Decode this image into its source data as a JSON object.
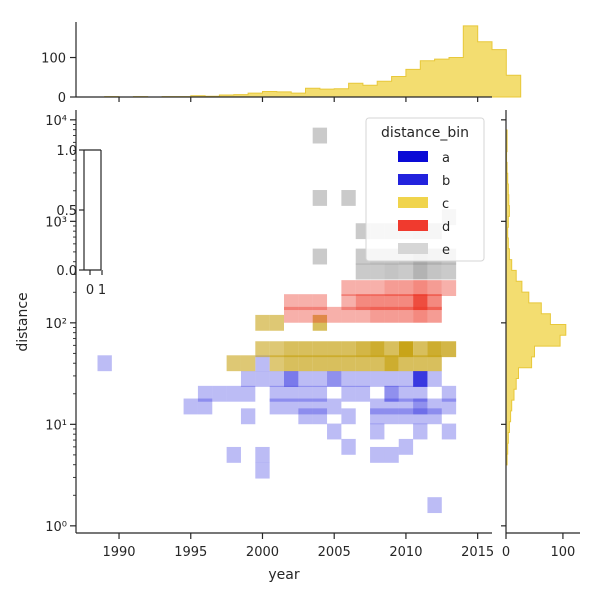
{
  "chart_data": {
    "type": "heatmap",
    "title": "",
    "xlabel": "year",
    "ylabel": "distance",
    "x_range": [
      1987,
      2016
    ],
    "y_range": [
      0.85,
      12500
    ],
    "y_scale": "log",
    "x_ticks": [
      1990,
      1995,
      2000,
      2005,
      2010,
      2015
    ],
    "y_ticks": [
      {
        "value": 1,
        "label": "10⁰"
      },
      {
        "value": 10,
        "label": "10¹"
      },
      {
        "value": 100,
        "label": "10²"
      },
      {
        "value": 1000,
        "label": "10³"
      },
      {
        "value": 10000,
        "label": "10⁴"
      }
    ],
    "x_bin_years": [
      1988.5,
      1989.5,
      1990.5,
      1991.5,
      1992.5,
      1993.5,
      1994.5,
      1995.5,
      1996.5,
      1997.5,
      1998.5,
      1999.5,
      2000.5,
      2001.5,
      2002.5,
      2003.5,
      2004.5,
      2005.5,
      2006.5,
      2007.5,
      2008.5,
      2009.5,
      2010.5,
      2011.5,
      2012.5,
      2013.5
    ],
    "legend": {
      "title": "distance_bin",
      "placement": "top-right",
      "entries": [
        {
          "label": "a",
          "color": "#0a0ad6"
        },
        {
          "label": "b",
          "color": "#2222dd"
        },
        {
          "label": "c",
          "color": "#f0d44c"
        },
        {
          "label": "d",
          "color": "#f03a2e"
        },
        {
          "label": "e",
          "color": "#d6d6d6"
        }
      ]
    },
    "hue_series": [
      {
        "name": "b",
        "color": "#2222dd",
        "cells": [
          {
            "x": 1989,
            "y": 40,
            "n": 0.3
          },
          {
            "x": 1995,
            "y": 15,
            "n": 0.3
          },
          {
            "x": 1996,
            "y": 15,
            "n": 0.3
          },
          {
            "x": 1996,
            "y": 20,
            "n": 0.3
          },
          {
            "x": 1997,
            "y": 20,
            "n": 0.3
          },
          {
            "x": 1998,
            "y": 20,
            "n": 0.3
          },
          {
            "x": 1998,
            "y": 5,
            "n": 0.3
          },
          {
            "x": 1999,
            "y": 12,
            "n": 0.3
          },
          {
            "x": 1999,
            "y": 20,
            "n": 0.3
          },
          {
            "x": 1999,
            "y": 28,
            "n": 0.3
          },
          {
            "x": 2000,
            "y": 40,
            "n": 0.3
          },
          {
            "x": 2000,
            "y": 28,
            "n": 0.3
          },
          {
            "x": 2000,
            "y": 5,
            "n": 0.3
          },
          {
            "x": 2000,
            "y": 3.5,
            "n": 0.3
          },
          {
            "x": 2001,
            "y": 28,
            "n": 0.3
          },
          {
            "x": 2001,
            "y": 20,
            "n": 0.3
          },
          {
            "x": 2001,
            "y": 15,
            "n": 0.3
          },
          {
            "x": 2002,
            "y": 28,
            "n": 0.6
          },
          {
            "x": 2002,
            "y": 20,
            "n": 0.3
          },
          {
            "x": 2002,
            "y": 15,
            "n": 0.3
          },
          {
            "x": 2003,
            "y": 28,
            "n": 0.3
          },
          {
            "x": 2003,
            "y": 20,
            "n": 0.3
          },
          {
            "x": 2003,
            "y": 15,
            "n": 0.3
          },
          {
            "x": 2003,
            "y": 12,
            "n": 0.3
          },
          {
            "x": 2004,
            "y": 28,
            "n": 0.3
          },
          {
            "x": 2004,
            "y": 20,
            "n": 0.3
          },
          {
            "x": 2004,
            "y": 15,
            "n": 0.3
          },
          {
            "x": 2004,
            "y": 12,
            "n": 0.3
          },
          {
            "x": 2005,
            "y": 28,
            "n": 0.5
          },
          {
            "x": 2005,
            "y": 15,
            "n": 0.3
          },
          {
            "x": 2005,
            "y": 8.5,
            "n": 0.3
          },
          {
            "x": 2006,
            "y": 28,
            "n": 0.3
          },
          {
            "x": 2006,
            "y": 20,
            "n": 0.3
          },
          {
            "x": 2006,
            "y": 12,
            "n": 0.3
          },
          {
            "x": 2006,
            "y": 6,
            "n": 0.3
          },
          {
            "x": 2007,
            "y": 28,
            "n": 0.3
          },
          {
            "x": 2007,
            "y": 20,
            "n": 0.3
          },
          {
            "x": 2008,
            "y": 28,
            "n": 0.3
          },
          {
            "x": 2008,
            "y": 15,
            "n": 0.3
          },
          {
            "x": 2008,
            "y": 12,
            "n": 0.3
          },
          {
            "x": 2008,
            "y": 8.5,
            "n": 0.3
          },
          {
            "x": 2008,
            "y": 5,
            "n": 0.3
          },
          {
            "x": 2009,
            "y": 28,
            "n": 0.3
          },
          {
            "x": 2009,
            "y": 20,
            "n": 0.5
          },
          {
            "x": 2009,
            "y": 15,
            "n": 0.3
          },
          {
            "x": 2009,
            "y": 12,
            "n": 0.3
          },
          {
            "x": 2009,
            "y": 5,
            "n": 0.3
          },
          {
            "x": 2010,
            "y": 28,
            "n": 0.3
          },
          {
            "x": 2010,
            "y": 20,
            "n": 0.3
          },
          {
            "x": 2010,
            "y": 15,
            "n": 0.3
          },
          {
            "x": 2010,
            "y": 12,
            "n": 0.3
          },
          {
            "x": 2010,
            "y": 6,
            "n": 0.3
          },
          {
            "x": 2011,
            "y": 28,
            "n": 0.9
          },
          {
            "x": 2011,
            "y": 20,
            "n": 0.3
          },
          {
            "x": 2011,
            "y": 15,
            "n": 0.5
          },
          {
            "x": 2011,
            "y": 12,
            "n": 0.3
          },
          {
            "x": 2011,
            "y": 8.5,
            "n": 0.3
          },
          {
            "x": 2012,
            "y": 28,
            "n": 0.3
          },
          {
            "x": 2012,
            "y": 15,
            "n": 0.3
          },
          {
            "x": 2012,
            "y": 12,
            "n": 0.3
          },
          {
            "x": 2012,
            "y": 1.6,
            "n": 0.3
          },
          {
            "x": 2013,
            "y": 20,
            "n": 0.3
          },
          {
            "x": 2013,
            "y": 15,
            "n": 0.3
          },
          {
            "x": 2013,
            "y": 8.5,
            "n": 0.3
          }
        ]
      },
      {
        "name": "c",
        "color": "#c8a418",
        "cells": [
          {
            "x": 1998,
            "y": 40,
            "n": 0.6
          },
          {
            "x": 1999,
            "y": 40,
            "n": 0.6
          },
          {
            "x": 2000,
            "y": 100,
            "n": 0.6
          },
          {
            "x": 2000,
            "y": 55,
            "n": 0.6
          },
          {
            "x": 2001,
            "y": 100,
            "n": 0.6
          },
          {
            "x": 2001,
            "y": 55,
            "n": 0.6
          },
          {
            "x": 2001,
            "y": 40,
            "n": 0.6
          },
          {
            "x": 2002,
            "y": 55,
            "n": 0.7
          },
          {
            "x": 2002,
            "y": 40,
            "n": 0.7
          },
          {
            "x": 2003,
            "y": 55,
            "n": 0.7
          },
          {
            "x": 2003,
            "y": 40,
            "n": 0.7
          },
          {
            "x": 2004,
            "y": 100,
            "n": 0.7
          },
          {
            "x": 2004,
            "y": 55,
            "n": 0.7
          },
          {
            "x": 2004,
            "y": 40,
            "n": 0.7
          },
          {
            "x": 2005,
            "y": 55,
            "n": 0.7
          },
          {
            "x": 2005,
            "y": 40,
            "n": 0.7
          },
          {
            "x": 2006,
            "y": 55,
            "n": 0.7
          },
          {
            "x": 2006,
            "y": 40,
            "n": 0.7
          },
          {
            "x": 2007,
            "y": 55,
            "n": 0.8
          },
          {
            "x": 2007,
            "y": 40,
            "n": 0.7
          },
          {
            "x": 2008,
            "y": 55,
            "n": 0.9
          },
          {
            "x": 2008,
            "y": 40,
            "n": 0.7
          },
          {
            "x": 2009,
            "y": 55,
            "n": 0.7
          },
          {
            "x": 2009,
            "y": 40,
            "n": 0.9
          },
          {
            "x": 2010,
            "y": 55,
            "n": 1.0
          },
          {
            "x": 2010,
            "y": 40,
            "n": 0.7
          },
          {
            "x": 2011,
            "y": 55,
            "n": 0.7
          },
          {
            "x": 2011,
            "y": 40,
            "n": 0.7
          },
          {
            "x": 2012,
            "y": 55,
            "n": 0.9
          },
          {
            "x": 2012,
            "y": 40,
            "n": 0.7
          },
          {
            "x": 2013,
            "y": 55,
            "n": 0.8
          }
        ]
      },
      {
        "name": "d",
        "color": "#ec3a2a",
        "cells": [
          {
            "x": 2002,
            "y": 160,
            "n": 0.4
          },
          {
            "x": 2002,
            "y": 120,
            "n": 0.4
          },
          {
            "x": 2003,
            "y": 160,
            "n": 0.4
          },
          {
            "x": 2003,
            "y": 120,
            "n": 0.4
          },
          {
            "x": 2004,
            "y": 160,
            "n": 0.4
          },
          {
            "x": 2004,
            "y": 120,
            "n": 0.4
          },
          {
            "x": 2005,
            "y": 120,
            "n": 0.4
          },
          {
            "x": 2006,
            "y": 220,
            "n": 0.4
          },
          {
            "x": 2006,
            "y": 160,
            "n": 0.4
          },
          {
            "x": 2006,
            "y": 120,
            "n": 0.4
          },
          {
            "x": 2007,
            "y": 220,
            "n": 0.4
          },
          {
            "x": 2007,
            "y": 160,
            "n": 0.6
          },
          {
            "x": 2007,
            "y": 120,
            "n": 0.4
          },
          {
            "x": 2008,
            "y": 220,
            "n": 0.4
          },
          {
            "x": 2008,
            "y": 160,
            "n": 0.6
          },
          {
            "x": 2008,
            "y": 120,
            "n": 0.5
          },
          {
            "x": 2009,
            "y": 220,
            "n": 0.5
          },
          {
            "x": 2009,
            "y": 160,
            "n": 0.6
          },
          {
            "x": 2009,
            "y": 120,
            "n": 0.5
          },
          {
            "x": 2010,
            "y": 220,
            "n": 0.5
          },
          {
            "x": 2010,
            "y": 160,
            "n": 0.6
          },
          {
            "x": 2010,
            "y": 120,
            "n": 0.5
          },
          {
            "x": 2011,
            "y": 220,
            "n": 0.6
          },
          {
            "x": 2011,
            "y": 160,
            "n": 0.9
          },
          {
            "x": 2011,
            "y": 120,
            "n": 0.6
          },
          {
            "x": 2012,
            "y": 220,
            "n": 0.5
          },
          {
            "x": 2012,
            "y": 160,
            "n": 0.6
          },
          {
            "x": 2012,
            "y": 120,
            "n": 0.5
          },
          {
            "x": 2013,
            "y": 220,
            "n": 0.4
          }
        ]
      },
      {
        "name": "e",
        "color": "#8a8a8a",
        "cells": [
          {
            "x": 2004,
            "y": 7000,
            "n": 0.45
          },
          {
            "x": 2004,
            "y": 1700,
            "n": 0.45
          },
          {
            "x": 2004,
            "y": 450,
            "n": 0.45
          },
          {
            "x": 2006,
            "y": 1700,
            "n": 0.45
          },
          {
            "x": 2007,
            "y": 800,
            "n": 0.45
          },
          {
            "x": 2007,
            "y": 450,
            "n": 0.45
          },
          {
            "x": 2007,
            "y": 320,
            "n": 0.45
          },
          {
            "x": 2008,
            "y": 800,
            "n": 0.45
          },
          {
            "x": 2008,
            "y": 450,
            "n": 0.5
          },
          {
            "x": 2008,
            "y": 320,
            "n": 0.45
          },
          {
            "x": 2009,
            "y": 800,
            "n": 0.45
          },
          {
            "x": 2009,
            "y": 450,
            "n": 0.5
          },
          {
            "x": 2009,
            "y": 320,
            "n": 0.5
          },
          {
            "x": 2010,
            "y": 800,
            "n": 0.45
          },
          {
            "x": 2010,
            "y": 450,
            "n": 0.55
          },
          {
            "x": 2010,
            "y": 320,
            "n": 0.45
          },
          {
            "x": 2011,
            "y": 800,
            "n": 0.55
          },
          {
            "x": 2011,
            "y": 450,
            "n": 0.7
          },
          {
            "x": 2011,
            "y": 320,
            "n": 0.65
          },
          {
            "x": 2012,
            "y": 800,
            "n": 0.5
          },
          {
            "x": 2012,
            "y": 450,
            "n": 0.6
          },
          {
            "x": 2012,
            "y": 320,
            "n": 0.5
          },
          {
            "x": 2013,
            "y": 1100,
            "n": 0.45
          },
          {
            "x": 2013,
            "y": 450,
            "n": 0.5
          },
          {
            "x": 2013,
            "y": 320,
            "n": 0.45
          }
        ]
      }
    ],
    "marginal_x": {
      "color": "#f0d44c",
      "y_ticks": [
        0,
        100
      ],
      "y_max": 190,
      "counts": [
        0,
        1,
        0,
        1,
        0,
        1,
        1,
        3,
        2,
        5,
        6,
        10,
        14,
        13,
        10,
        22,
        20,
        21,
        35,
        30,
        40,
        52,
        70,
        92,
        96,
        100,
        180,
        140,
        120,
        55
      ]
    },
    "marginal_y": {
      "color": "#f0d44c",
      "x_ticks": [
        0,
        100
      ],
      "x_max": 130,
      "counts": [
        2,
        3,
        4,
        6,
        8,
        10,
        14,
        18,
        22,
        45,
        50,
        95,
        105,
        78,
        62,
        40,
        28,
        18,
        10,
        6,
        4,
        3,
        4,
        6,
        5,
        4,
        3,
        2,
        1,
        2,
        2
      ]
    },
    "colorbar": {
      "ticks": [
        {
          "value": 0,
          "label": "0.0"
        },
        {
          "value": 0.5,
          "label": "0.5"
        },
        {
          "value": 1,
          "label": "1.0"
        }
      ],
      "x_ticks": [
        "0",
        "1"
      ]
    }
  }
}
